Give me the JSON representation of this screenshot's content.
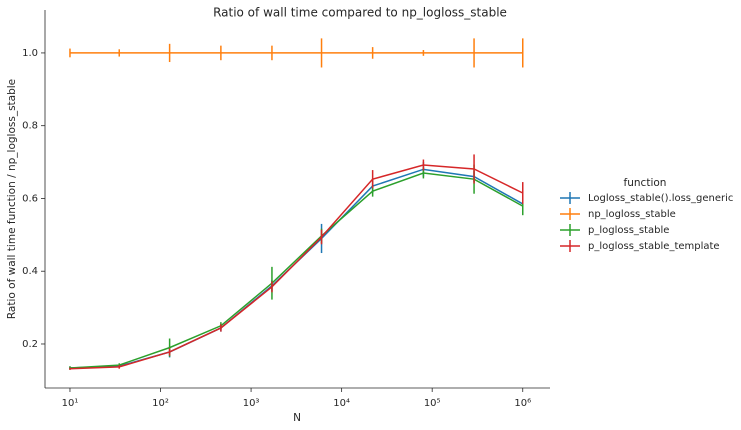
{
  "chart_data": {
    "type": "line",
    "title": "Ratio of wall time compared to np_logloss_stable",
    "x_label": "N",
    "y_label": "Ratio of wall time function / np_logloss_stable",
    "legend_title": "function",
    "legend": "right",
    "x_scale": "log",
    "x": [
      10,
      35,
      126,
      464,
      1700,
      6000,
      22000,
      80000,
      290000,
      1000000
    ],
    "xlim": [
      5.3,
      2000000
    ],
    "xticks": [
      {
        "value": 10,
        "label": "10¹"
      },
      {
        "value": 100,
        "label": "10²"
      },
      {
        "value": 1000,
        "label": "10³"
      },
      {
        "value": 10000,
        "label": "10⁴"
      },
      {
        "value": 100000,
        "label": "10⁵"
      },
      {
        "value": 1000000,
        "label": "10⁶"
      }
    ],
    "ylim": [
      0.079,
      1.118
    ],
    "yticks": [
      0.2,
      0.4,
      0.6,
      0.8,
      {
        "value": 1,
        "label": "1.0"
      }
    ],
    "series": [
      {
        "name": "Logloss_stable().loss_generic",
        "color": "#1f77b4",
        "values": [
          0.134,
          0.139,
          0.178,
          0.244,
          0.36,
          0.49,
          0.634,
          0.68,
          0.66,
          0.585
        ],
        "errors": [
          0.003,
          0.005,
          0.015,
          0.01,
          0.015,
          0.04,
          0.02,
          0.02,
          0.015,
          0.02
        ]
      },
      {
        "name": "np_logloss_stable",
        "color": "#ff7f0e",
        "values": [
          1,
          1,
          1,
          1,
          1,
          1,
          1,
          1,
          1,
          1
        ],
        "errors": [
          0.012,
          0.01,
          0.025,
          0.02,
          0.02,
          0.04,
          0.016,
          0.008,
          0.04,
          0.04
        ]
      },
      {
        "name": "p_logloss_stable",
        "color": "#2ca02c",
        "values": [
          0.134,
          0.142,
          0.19,
          0.25,
          0.367,
          0.497,
          0.62,
          0.67,
          0.653,
          0.579
        ],
        "errors": [
          0.005,
          0.005,
          0.025,
          0.01,
          0.045,
          0.02,
          0.015,
          0.015,
          0.04,
          0.025
        ]
      },
      {
        "name": "p_logloss_stable_template",
        "color": "#d62728",
        "values": [
          0.132,
          0.137,
          0.178,
          0.244,
          0.357,
          0.494,
          0.653,
          0.692,
          0.681,
          0.615
        ],
        "errors": [
          0.003,
          0.005,
          0.01,
          0.01,
          0.015,
          0.02,
          0.025,
          0.015,
          0.04,
          0.03
        ]
      }
    ]
  }
}
